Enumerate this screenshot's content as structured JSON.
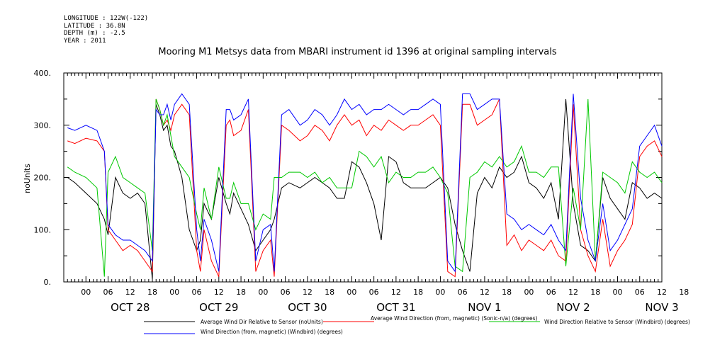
{
  "meta": {
    "longitude": "LONGITUDE : 122W(-122)",
    "latitude": "LATITUDE : 36.8N",
    "depth": "DEPTH (m) : -2.5",
    "year": "YEAR : 2011"
  },
  "chart_data": {
    "type": "line",
    "title": "Mooring M1 Metsys data from MBARI instrument id 1396 at original sampling intervals",
    "ylabel": "noUnits",
    "xlabel": "",
    "ylim": [
      0,
      400
    ],
    "yticks": [
      0,
      100,
      200,
      300,
      400
    ],
    "xlim_hours": [
      -6,
      156
    ],
    "hour_ticks": [
      "00",
      "06",
      "12",
      "18",
      "00",
      "06",
      "12",
      "18",
      "00",
      "06",
      "12",
      "18",
      "00",
      "06",
      "12",
      "18",
      "00",
      "06",
      "12",
      "18",
      "00",
      "06",
      "12",
      "18",
      "00",
      "06",
      "12",
      "18"
    ],
    "date_labels": [
      "OCT 28",
      "OCT 29",
      "OCT 30",
      "OCT 31",
      "NOV  1",
      "NOV  2",
      "NOV  3"
    ],
    "grid": false,
    "legend_placement": "bottom",
    "series": [
      {
        "name": "Average Wind Dir Relative to Sensor (noUnits)",
        "color": "#000000",
        "x": [
          -5,
          -3,
          0,
          3,
          5,
          6,
          8,
          10,
          12,
          14,
          16,
          18,
          19,
          20,
          21,
          22,
          23,
          24,
          26,
          28,
          30,
          31,
          32,
          34,
          36,
          38,
          39,
          40,
          42,
          44,
          46,
          48,
          50,
          51,
          53,
          55,
          58,
          60,
          62,
          64,
          66,
          68,
          70,
          72,
          74,
          76,
          78,
          80,
          82,
          84,
          86,
          88,
          90,
          92,
          94,
          96,
          98,
          100,
          102,
          104,
          106,
          108,
          110,
          112,
          114,
          116,
          118,
          120,
          122,
          124,
          126,
          128,
          130,
          132,
          134,
          136,
          138,
          140,
          142,
          144,
          146,
          148,
          150,
          152,
          154,
          156
        ],
        "y": [
          200,
          190,
          170,
          150,
          120,
          90,
          200,
          170,
          160,
          170,
          150,
          5,
          340,
          320,
          290,
          300,
          260,
          250,
          200,
          100,
          60,
          80,
          150,
          120,
          200,
          150,
          130,
          170,
          140,
          110,
          60,
          80,
          100,
          120,
          180,
          190,
          180,
          190,
          200,
          190,
          180,
          160,
          160,
          230,
          220,
          190,
          150,
          80,
          240,
          230,
          190,
          180,
          180,
          180,
          190,
          200,
          180,
          110,
          60,
          20,
          170,
          200,
          180,
          220,
          200,
          210,
          240,
          190,
          180,
          160,
          190,
          120,
          350,
          150,
          70,
          60,
          40,
          200,
          160,
          140,
          120,
          190,
          180,
          160,
          170,
          160
        ]
      },
      {
        "name": "Average Wind Direction (from, magnetic) (Sonic-n/a) (degrees)",
        "color": "#ff0000",
        "x": [
          -5,
          -3,
          0,
          3,
          5,
          6,
          8,
          10,
          12,
          14,
          16,
          18,
          19,
          20,
          21,
          22,
          23,
          24,
          26,
          28,
          30,
          31,
          32,
          34,
          36,
          38,
          39,
          40,
          42,
          44,
          46,
          48,
          50,
          51,
          53,
          55,
          58,
          60,
          62,
          64,
          66,
          68,
          70,
          72,
          74,
          76,
          78,
          80,
          82,
          84,
          86,
          88,
          90,
          92,
          94,
          96,
          98,
          100,
          102,
          104,
          106,
          108,
          110,
          112,
          114,
          116,
          118,
          120,
          122,
          124,
          126,
          128,
          130,
          132,
          134,
          136,
          138,
          140,
          142,
          144,
          146,
          148,
          150,
          152,
          154,
          156
        ],
        "y": [
          270,
          265,
          275,
          270,
          250,
          100,
          80,
          60,
          70,
          60,
          40,
          20,
          350,
          330,
          300,
          310,
          290,
          320,
          340,
          320,
          60,
          20,
          100,
          40,
          10,
          300,
          310,
          280,
          290,
          330,
          20,
          60,
          80,
          10,
          300,
          290,
          270,
          280,
          300,
          290,
          270,
          300,
          320,
          300,
          310,
          280,
          300,
          290,
          310,
          300,
          290,
          300,
          300,
          310,
          320,
          300,
          20,
          10,
          340,
          340,
          300,
          310,
          320,
          350,
          70,
          90,
          60,
          80,
          70,
          60,
          80,
          50,
          40,
          340,
          100,
          50,
          20,
          120,
          30,
          60,
          80,
          110,
          240,
          260,
          270,
          240
        ]
      },
      {
        "name": "Wind Direction Relative to Sensor (Windbird) (degrees)",
        "color": "#00c800",
        "x": [
          -5,
          -3,
          0,
          3,
          5,
          6,
          8,
          10,
          12,
          14,
          16,
          18,
          19,
          20,
          21,
          22,
          23,
          24,
          26,
          28,
          30,
          31,
          32,
          34,
          36,
          38,
          39,
          40,
          42,
          44,
          46,
          48,
          50,
          51,
          53,
          55,
          58,
          60,
          62,
          64,
          66,
          68,
          70,
          72,
          74,
          76,
          78,
          80,
          82,
          84,
          86,
          88,
          90,
          92,
          94,
          96,
          98,
          100,
          102,
          104,
          106,
          108,
          110,
          112,
          114,
          116,
          118,
          120,
          122,
          124,
          126,
          128,
          130,
          132,
          134,
          136,
          138,
          140,
          142,
          144,
          146,
          148,
          150,
          152,
          154,
          156
        ],
        "y": [
          220,
          210,
          200,
          180,
          10,
          210,
          240,
          200,
          190,
          180,
          170,
          60,
          350,
          330,
          300,
          320,
          280,
          240,
          220,
          200,
          130,
          100,
          180,
          120,
          220,
          160,
          160,
          190,
          150,
          150,
          100,
          130,
          120,
          200,
          200,
          210,
          210,
          200,
          210,
          190,
          200,
          180,
          180,
          180,
          250,
          240,
          220,
          240,
          190,
          210,
          200,
          200,
          210,
          210,
          220,
          200,
          170,
          30,
          20,
          200,
          210,
          230,
          220,
          240,
          220,
          230,
          260,
          210,
          210,
          200,
          220,
          220,
          30,
          180,
          100,
          350,
          40,
          210,
          200,
          190,
          170,
          230,
          210,
          200,
          210,
          190
        ]
      },
      {
        "name": "Wind Direction (from, magnetic) (Windbird) (degrees)",
        "color": "#0000ff",
        "x": [
          -5,
          -3,
          0,
          3,
          5,
          6,
          8,
          10,
          12,
          14,
          16,
          18,
          19,
          20,
          21,
          22,
          23,
          24,
          26,
          28,
          30,
          31,
          32,
          34,
          36,
          38,
          39,
          40,
          42,
          44,
          46,
          48,
          50,
          51,
          53,
          55,
          58,
          60,
          62,
          64,
          66,
          68,
          70,
          72,
          74,
          76,
          78,
          80,
          82,
          84,
          86,
          88,
          90,
          92,
          94,
          96,
          98,
          100,
          102,
          104,
          106,
          108,
          110,
          112,
          114,
          116,
          118,
          120,
          122,
          124,
          126,
          128,
          130,
          132,
          134,
          136,
          138,
          140,
          142,
          144,
          146,
          148,
          150,
          152,
          154,
          156
        ],
        "y": [
          295,
          290,
          300,
          290,
          250,
          110,
          90,
          80,
          80,
          70,
          60,
          40,
          330,
          320,
          320,
          340,
          310,
          340,
          360,
          340,
          100,
          40,
          120,
          80,
          20,
          330,
          330,
          310,
          320,
          350,
          40,
          100,
          110,
          20,
          320,
          330,
          300,
          310,
          330,
          320,
          300,
          320,
          350,
          330,
          340,
          320,
          330,
          330,
          340,
          330,
          320,
          330,
          330,
          340,
          350,
          340,
          40,
          20,
          360,
          360,
          330,
          340,
          350,
          350,
          130,
          120,
          100,
          110,
          100,
          90,
          110,
          80,
          60,
          360,
          160,
          80,
          40,
          150,
          60,
          80,
          110,
          140,
          260,
          280,
          300,
          260
        ]
      }
    ]
  }
}
